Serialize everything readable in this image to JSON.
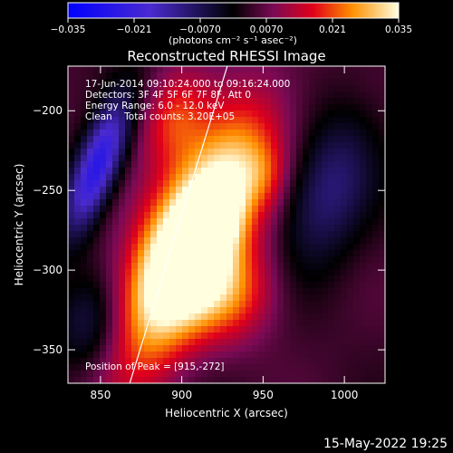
{
  "chart_data": {
    "type": "heatmap",
    "title": "Reconstructed RHESSI Image",
    "xlabel": "Heliocentric X (arcsec)",
    "ylabel": "Heliocentric Y (arcsec)",
    "xlim": [
      830,
      1025
    ],
    "ylim": [
      -371,
      -172
    ],
    "x_ticks": [
      850,
      900,
      950,
      1000
    ],
    "y_ticks": [
      -200,
      -250,
      -300,
      -350
    ],
    "colorbar": {
      "range": [
        -0.035,
        0.035
      ],
      "ticks": [
        "-0.035",
        "-0.021",
        "-0.0070",
        "0.0070",
        "0.021",
        "0.035"
      ],
      "unit_label": "(photons cm⁻² s⁻¹ asec⁻²)"
    },
    "annotations": [
      "17-Jun-2014 09:10:24.000 to 09:16:24.000",
      "Detectors: 3F 4F 5F 6F 7F 8F, Att 0",
      "Energy Range: 6.0 - 12.0 keV",
      "Clean    Total counts: 3.20E+05"
    ],
    "peak_label": "Position of Peak = [915,-272]",
    "peak": {
      "x": 915,
      "y": -272
    },
    "limb_line": [
      {
        "x": 868,
        "y": -371
      },
      {
        "x": 928,
        "y": -172
      }
    ],
    "blobs": [
      {
        "x": 906,
        "y": -282,
        "sx": 20,
        "sy": 55,
        "rot": 0.45,
        "amp": 0.05
      },
      {
        "x": 915,
        "y": -272,
        "sx": 9,
        "sy": 14,
        "rot": 0.5,
        "amp": 0.026
      },
      {
        "x": 930,
        "y": -315,
        "sx": 20,
        "sy": 22,
        "rot": 0.4,
        "amp": 0.016
      },
      {
        "x": 895,
        "y": -205,
        "sx": 14,
        "sy": 22,
        "rot": 0.2,
        "amp": 0.014
      },
      {
        "x": 950,
        "y": -240,
        "sx": 10,
        "sy": 14,
        "rot": 0.0,
        "amp": 0.006
      },
      {
        "x": 848,
        "y": -235,
        "sx": 9,
        "sy": 30,
        "rot": 0.35,
        "amp": -0.03
      },
      {
        "x": 990,
        "y": -250,
        "sx": 18,
        "sy": 35,
        "rot": 0.3,
        "amp": -0.014
      },
      {
        "x": 845,
        "y": -335,
        "sx": 16,
        "sy": 22,
        "rot": 0.0,
        "amp": -0.012
      }
    ],
    "grid": false
  },
  "footer_date": "15-May-2022 19:25"
}
